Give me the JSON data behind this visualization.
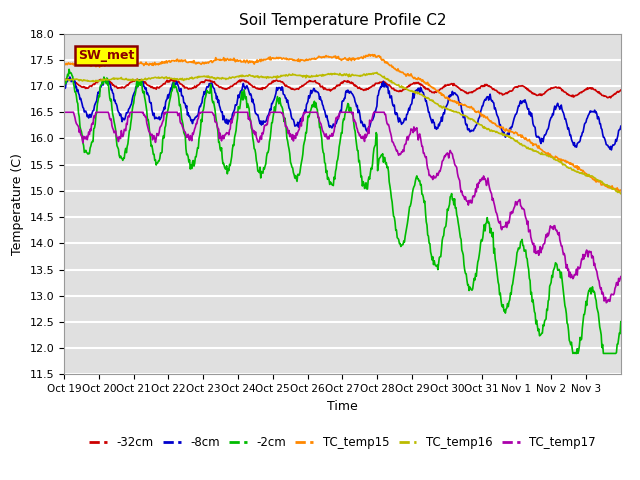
{
  "title": "Soil Temperature Profile C2",
  "xlabel": "Time",
  "ylabel": "Temperature (C)",
  "ylim": [
    11.5,
    18.0
  ],
  "yticks": [
    11.5,
    12.0,
    12.5,
    13.0,
    13.5,
    14.0,
    14.5,
    15.0,
    15.5,
    16.0,
    16.5,
    17.0,
    17.5,
    18.0
  ],
  "xtick_labels": [
    "Oct 19",
    "Oct 20",
    "Oct 21",
    "Oct 22",
    "Oct 23",
    "Oct 24",
    "Oct 25",
    "Oct 26",
    "Oct 27",
    "Oct 28",
    "Oct 29",
    "Oct 30",
    "Oct 31",
    "Nov 1",
    "Nov 2",
    "Nov 3"
  ],
  "annotation": "SW_met",
  "annotation_fgcolor": "#8B0000",
  "annotation_bgcolor": "#FFFF00",
  "annotation_edgecolor": "#8B0000",
  "colors": {
    "neg32cm": "#CC0000",
    "neg8cm": "#0000CC",
    "neg2cm": "#00BB00",
    "TC_temp15": "#FF8800",
    "TC_temp16": "#BBBB00",
    "TC_temp17": "#AA00AA"
  },
  "legend_labels": [
    "-32cm",
    "-8cm",
    "-2cm",
    "TC_temp15",
    "TC_temp16",
    "TC_temp17"
  ],
  "bg_color": "#E0E0E0",
  "grid_color": "#FFFFFF",
  "linewidth": 1.2,
  "n_days": 16
}
